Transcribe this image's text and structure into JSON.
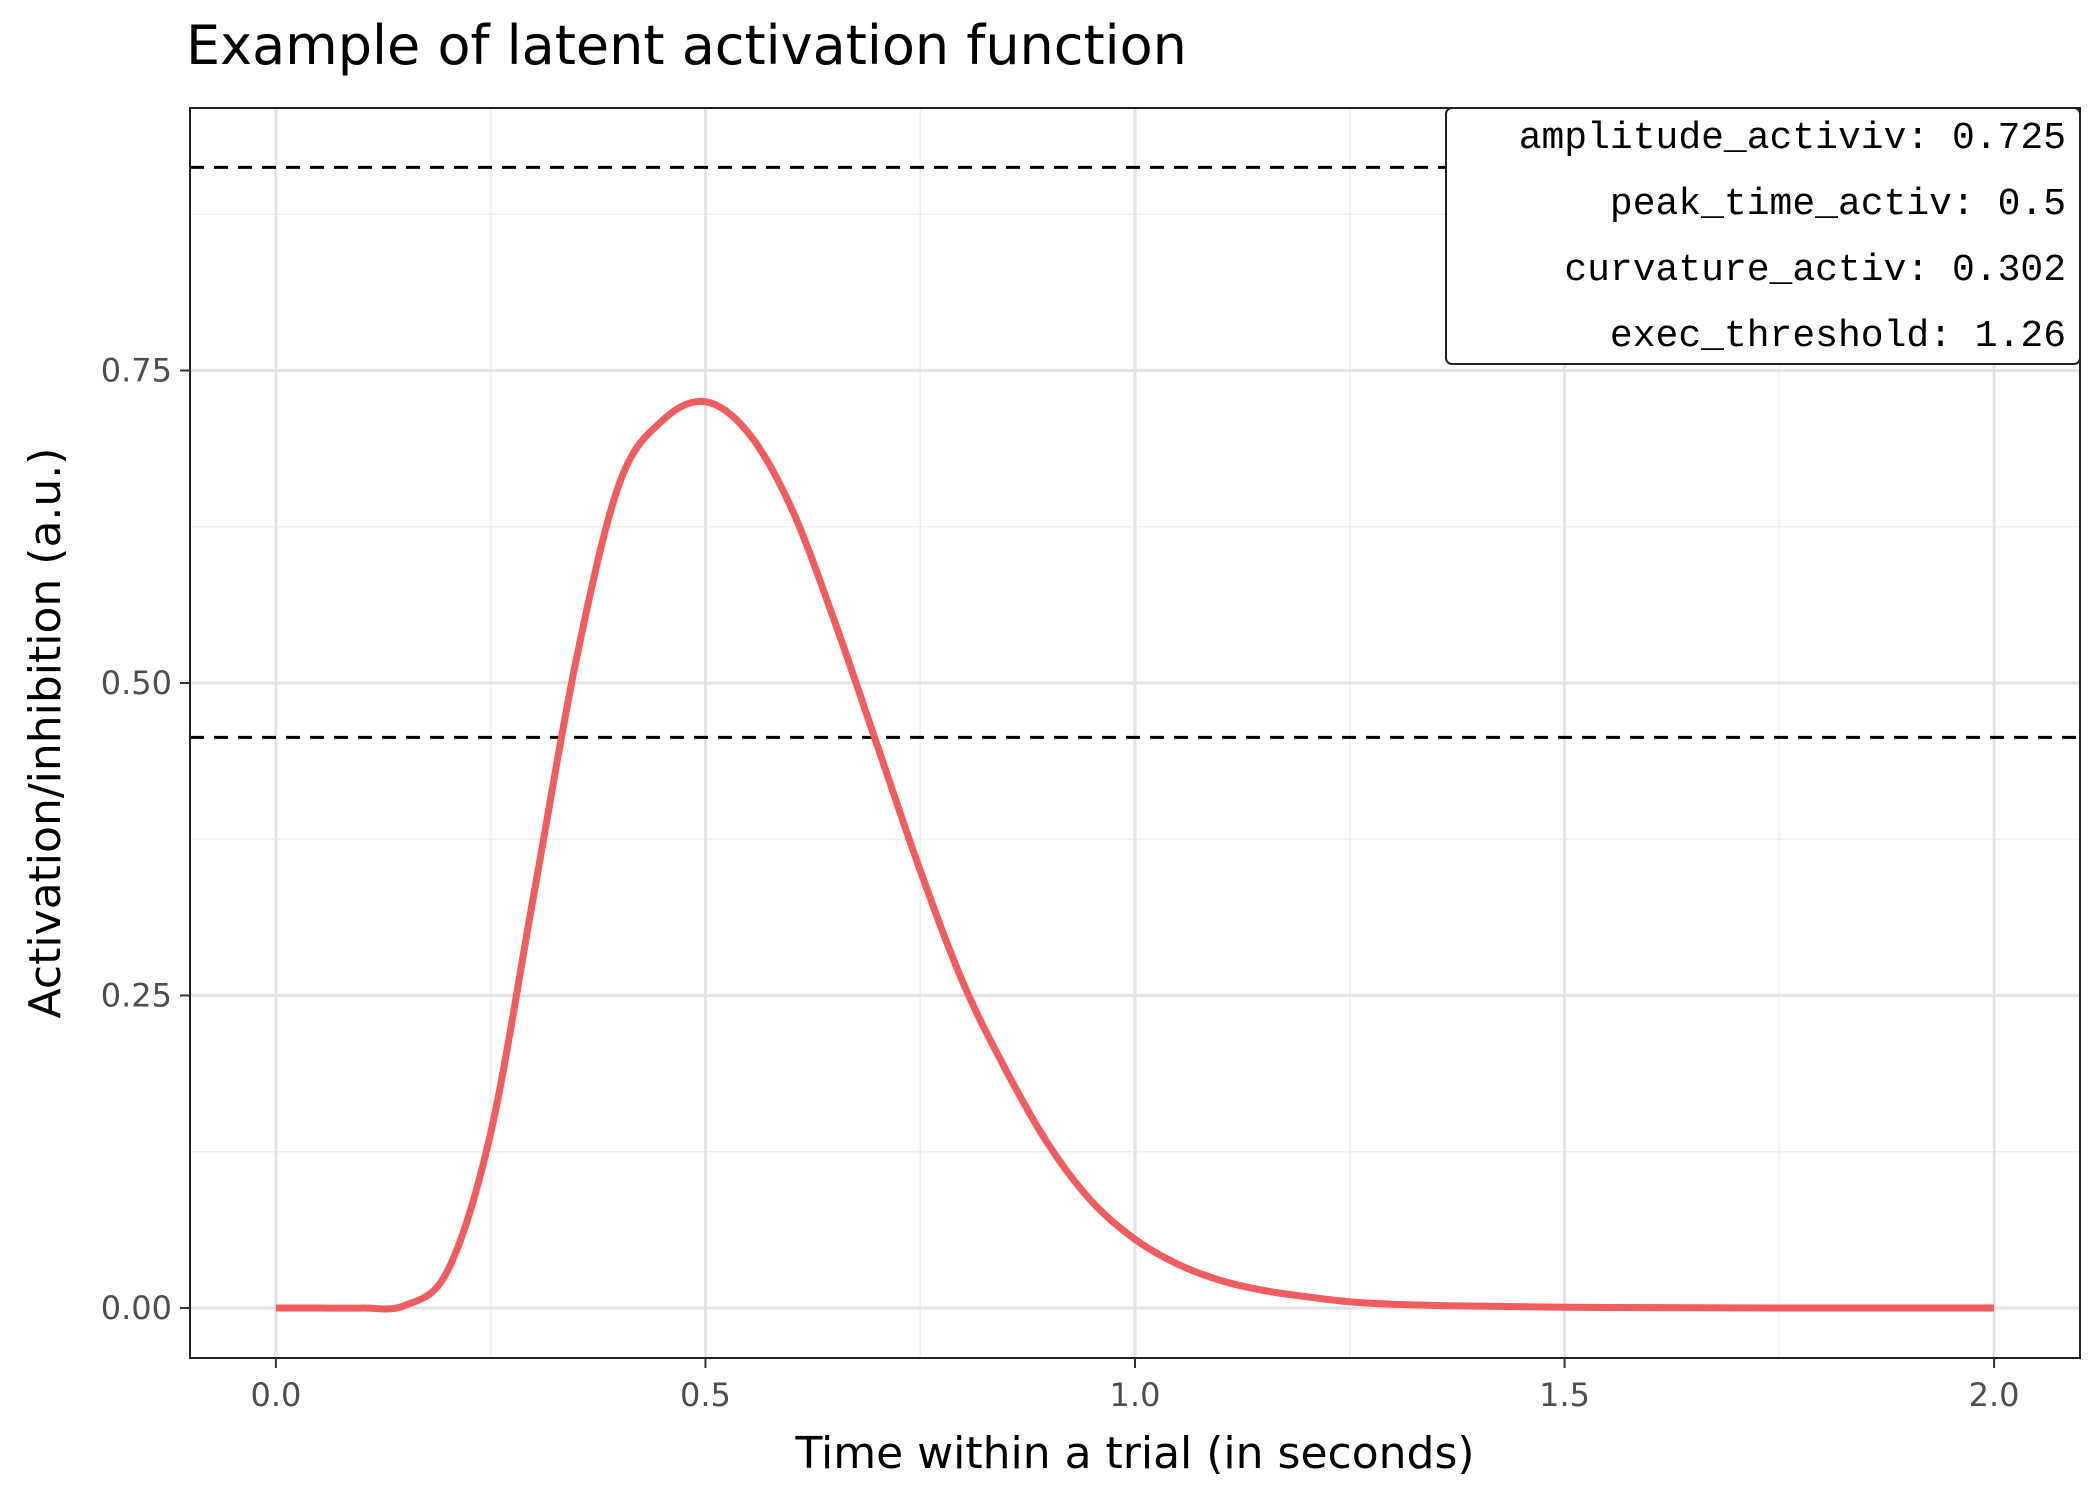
{
  "chart_data": {
    "type": "line",
    "title": "Example of latent activation function",
    "xlabel": "Time within a trial (in seconds)",
    "ylabel": "Activation/inhibition (a.u.)",
    "xlim": [
      -0.1,
      2.1
    ],
    "ylim": [
      -0.04,
      0.96
    ],
    "x_ticks": [
      0.0,
      0.5,
      1.0,
      1.5,
      2.0
    ],
    "x_tick_labels": [
      "0.0",
      "0.5",
      "1.0",
      "1.5",
      "2.0"
    ],
    "y_ticks": [
      0.0,
      0.25,
      0.5,
      0.75
    ],
    "y_tick_labels": [
      "0.00",
      "0.25",
      "0.50",
      "0.75"
    ],
    "grid": true,
    "series": [
      {
        "color": "#F05D5E",
        "x": [
          0.0,
          0.05,
          0.1,
          0.15,
          0.2,
          0.25,
          0.3,
          0.35,
          0.4,
          0.45,
          0.5,
          0.55,
          0.6,
          0.65,
          0.7,
          0.75,
          0.8,
          0.85,
          0.9,
          0.95,
          1.0,
          1.05,
          1.1,
          1.15,
          1.2,
          1.25,
          1.3,
          1.35,
          1.4,
          1.5,
          1.6,
          1.7,
          1.8,
          1.9,
          2.0
        ],
        "y": [
          0.0,
          0.0,
          0.0,
          0.002,
          0.03,
          0.14,
          0.33,
          0.52,
          0.66,
          0.71,
          0.725,
          0.7,
          0.64,
          0.55,
          0.45,
          0.35,
          0.26,
          0.19,
          0.13,
          0.085,
          0.055,
          0.035,
          0.022,
          0.014,
          0.009,
          0.005,
          0.003,
          0.002,
          0.0015,
          0.0006,
          0.0003,
          0.0001,
          0.0,
          0.0,
          0.0
        ]
      }
    ],
    "reference_lines": [
      {
        "y": 0.9125,
        "style": "dashed",
        "color": "#000000"
      },
      {
        "y": 0.4565,
        "style": "dashed",
        "color": "#000000"
      }
    ],
    "legend_position": "top-right",
    "annotation_box": {
      "lines": [
        "amplitude_activiv: 0.725",
        "peak_time_activ: 0.5",
        "curvature_activ: 0.302",
        "exec_threshold: 1.26"
      ]
    }
  }
}
